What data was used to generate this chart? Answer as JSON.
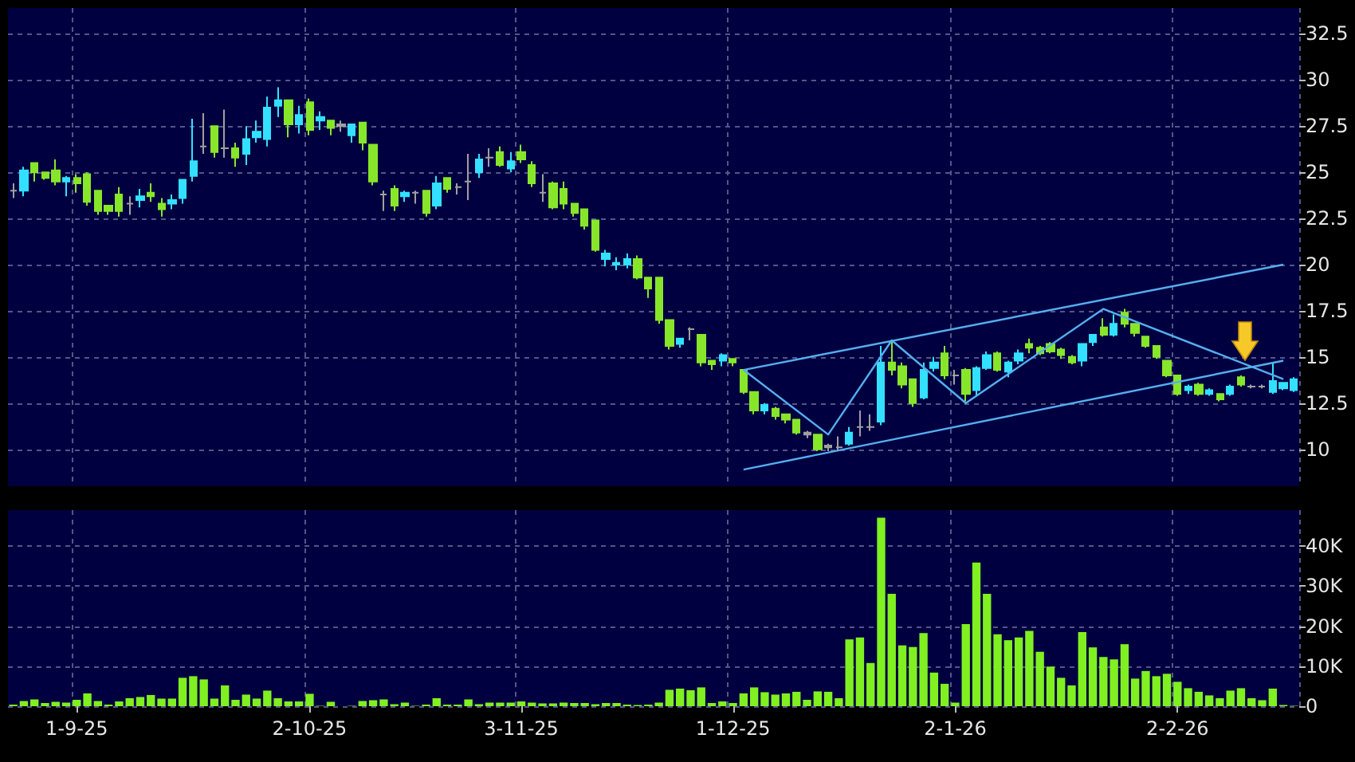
{
  "chart_data": [
    {
      "type": "candlestick",
      "categories": [
        null,
        null,
        null,
        null,
        null,
        null,
        null,
        null,
        null,
        null,
        null,
        null,
        null,
        null,
        null,
        null,
        null,
        null,
        null,
        null,
        null,
        null,
        null,
        null,
        null,
        null,
        null,
        null,
        null,
        null,
        null,
        null,
        null,
        null,
        null,
        null,
        null,
        null,
        null,
        null,
        null,
        null,
        null,
        null,
        null,
        null,
        null,
        null,
        null,
        null,
        null,
        null,
        null,
        null,
        null,
        null,
        null,
        null,
        null,
        null,
        null,
        null,
        null,
        null,
        null,
        null,
        null,
        null,
        null,
        null,
        null,
        null,
        null,
        null,
        null,
        null,
        null,
        null,
        null,
        null,
        null,
        null,
        null,
        null,
        null,
        null,
        null,
        null,
        null,
        null,
        null,
        null,
        null,
        null,
        null,
        null,
        null,
        null,
        null,
        null,
        null,
        null,
        null,
        null,
        null,
        null,
        null,
        null,
        null,
        null,
        null,
        null,
        null,
        null,
        null,
        null,
        null,
        null,
        null,
        null,
        null,
        null
      ],
      "ylim": [
        8,
        33.9
      ],
      "yticks": [
        10,
        12.5,
        15,
        17.5,
        20,
        22.5,
        25,
        27.5,
        30,
        32.5
      ],
      "grid": true,
      "tick_labels": "y",
      "marker": "none",
      "series": [
        {
          "type": "candlestick",
          "ohlc": [
            [
              24.0,
              24.4,
              23.6,
              24.0
            ],
            [
              24.0,
              25.3,
              23.7,
              25.1
            ],
            [
              25.5,
              25.5,
              24.5,
              25.0
            ],
            [
              25.0,
              25.0,
              24.6,
              24.7
            ],
            [
              25.1,
              25.7,
              24.3,
              24.5
            ],
            [
              24.5,
              24.8,
              23.7,
              24.7
            ],
            [
              24.7,
              24.9,
              23.9,
              24.4
            ],
            [
              24.9,
              25.0,
              23.2,
              23.4
            ],
            [
              24.0,
              24.0,
              22.7,
              22.9
            ],
            [
              23.2,
              23.2,
              22.7,
              22.9
            ],
            [
              23.8,
              24.2,
              22.6,
              22.9
            ],
            [
              23.3,
              23.7,
              22.7,
              23.3
            ],
            [
              23.5,
              24.1,
              23.1,
              23.7
            ],
            [
              23.9,
              24.4,
              23.4,
              23.7
            ],
            [
              23.3,
              23.6,
              22.6,
              23.0
            ],
            [
              23.3,
              23.8,
              23.0,
              23.5
            ],
            [
              23.6,
              24.6,
              23.3,
              24.6
            ],
            [
              24.8,
              27.9,
              24.5,
              25.6
            ],
            [
              26.4,
              28.2,
              26.0,
              26.4
            ],
            [
              27.5,
              27.5,
              25.8,
              26.1
            ],
            [
              26.3,
              28.4,
              25.8,
              26.3
            ],
            [
              26.3,
              26.6,
              25.3,
              25.8
            ],
            [
              26.0,
              27.5,
              25.4,
              26.8
            ],
            [
              26.9,
              27.8,
              26.6,
              27.2
            ],
            [
              26.8,
              29.1,
              26.4,
              28.5
            ],
            [
              28.6,
              29.6,
              28.0,
              28.9
            ],
            [
              28.9,
              28.9,
              26.9,
              27.6
            ],
            [
              27.6,
              28.6,
              27.1,
              28.1
            ],
            [
              28.8,
              29.0,
              27.0,
              27.3
            ],
            [
              27.8,
              28.3,
              27.3,
              28.0
            ],
            [
              27.8,
              27.8,
              27.0,
              27.4
            ],
            [
              27.5,
              27.8,
              27.2,
              27.6
            ],
            [
              27.0,
              27.6,
              26.6,
              27.6
            ],
            [
              27.7,
              27.7,
              26.2,
              26.6
            ],
            [
              26.5,
              26.5,
              24.3,
              24.5
            ],
            [
              23.8,
              24.0,
              22.9,
              23.8
            ],
            [
              24.1,
              24.3,
              22.9,
              23.2
            ],
            [
              23.7,
              24.0,
              23.4,
              23.9
            ],
            [
              23.9,
              24.0,
              23.3,
              23.9
            ],
            [
              24.0,
              24.0,
              22.6,
              22.8
            ],
            [
              23.2,
              24.8,
              23.0,
              24.4
            ],
            [
              24.7,
              24.7,
              23.9,
              24.1
            ],
            [
              24.2,
              24.4,
              23.8,
              24.2
            ],
            [
              24.5,
              26.0,
              23.5,
              24.5
            ],
            [
              25.0,
              26.0,
              24.7,
              25.7
            ],
            [
              25.8,
              26.3,
              25.3,
              25.8
            ],
            [
              26.1,
              26.4,
              25.3,
              25.4
            ],
            [
              25.2,
              26.1,
              25.0,
              25.6
            ],
            [
              26.1,
              26.5,
              25.5,
              25.7
            ],
            [
              25.4,
              25.6,
              24.2,
              24.4
            ],
            [
              23.9,
              24.9,
              23.4,
              23.9
            ],
            [
              24.4,
              24.5,
              23.0,
              23.1
            ],
            [
              24.1,
              24.5,
              23.0,
              23.3
            ],
            [
              23.3,
              23.3,
              22.6,
              22.8
            ],
            [
              23.0,
              23.0,
              21.9,
              22.1
            ],
            [
              22.4,
              22.4,
              20.7,
              20.8
            ],
            [
              20.3,
              20.8,
              19.9,
              20.6
            ],
            [
              20.0,
              20.4,
              19.7,
              20.1
            ],
            [
              20.0,
              20.6,
              19.8,
              20.3
            ],
            [
              20.3,
              20.5,
              19.2,
              19.3
            ],
            [
              19.3,
              19.3,
              18.2,
              18.7
            ],
            [
              19.3,
              19.3,
              16.8,
              17.0
            ],
            [
              17.0,
              17.0,
              15.4,
              15.6
            ],
            [
              15.7,
              16.0,
              15.5,
              16.0
            ],
            [
              16.5,
              16.6,
              15.9,
              16.5
            ],
            [
              16.2,
              16.2,
              14.5,
              14.7
            ],
            [
              14.8,
              14.8,
              14.3,
              14.6
            ],
            [
              14.8,
              15.2,
              14.5,
              15.1
            ],
            [
              14.9,
              14.9,
              14.5,
              14.7
            ],
            [
              14.3,
              14.3,
              13.0,
              13.1
            ],
            [
              13.1,
              13.1,
              11.9,
              12.1
            ],
            [
              12.1,
              12.5,
              11.9,
              12.4
            ],
            [
              12.2,
              12.3,
              11.6,
              11.8
            ],
            [
              11.9,
              11.9,
              11.4,
              11.6
            ],
            [
              11.6,
              11.6,
              10.8,
              10.9
            ],
            [
              10.8,
              11.0,
              10.6,
              10.9
            ],
            [
              10.8,
              10.8,
              9.9,
              10.0
            ],
            [
              10.1,
              10.3,
              9.9,
              10.2
            ],
            [
              10.1,
              10.7,
              9.9,
              10.1
            ],
            [
              10.3,
              11.2,
              10.2,
              10.9
            ],
            [
              11.2,
              12.1,
              10.7,
              11.2
            ],
            [
              11.2,
              11.9,
              11.0,
              11.2
            ],
            [
              11.5,
              15.6,
              11.3,
              14.7
            ],
            [
              14.7,
              15.9,
              14.0,
              14.3
            ],
            [
              14.5,
              14.7,
              13.3,
              13.5
            ],
            [
              13.8,
              13.8,
              12.3,
              12.5
            ],
            [
              12.8,
              14.7,
              12.7,
              14.3
            ],
            [
              14.4,
              15.0,
              14.2,
              14.7
            ],
            [
              15.2,
              15.6,
              13.8,
              14.0
            ],
            [
              14.0,
              14.3,
              13.5,
              14.0
            ],
            [
              14.3,
              14.4,
              12.6,
              13.0
            ],
            [
              13.2,
              14.5,
              12.9,
              14.4
            ],
            [
              14.4,
              15.3,
              14.3,
              15.1
            ],
            [
              15.2,
              15.3,
              14.2,
              14.3
            ],
            [
              14.2,
              14.8,
              13.9,
              14.7
            ],
            [
              14.8,
              15.4,
              14.6,
              15.2
            ],
            [
              15.7,
              16.0,
              15.2,
              15.5
            ],
            [
              15.5,
              15.6,
              15.1,
              15.2
            ],
            [
              15.7,
              15.8,
              15.2,
              15.3
            ],
            [
              15.4,
              15.5,
              14.9,
              15.1
            ],
            [
              15.0,
              15.1,
              14.6,
              14.7
            ],
            [
              14.8,
              15.7,
              14.5,
              15.7
            ],
            [
              15.8,
              16.2,
              15.6,
              16.2
            ],
            [
              16.6,
              17.1,
              16.1,
              16.2
            ],
            [
              16.2,
              17.3,
              16.1,
              16.8
            ],
            [
              17.4,
              17.6,
              16.6,
              16.8
            ],
            [
              16.8,
              16.8,
              16.1,
              16.3
            ],
            [
              16.1,
              16.1,
              15.5,
              15.6
            ],
            [
              15.6,
              15.6,
              14.9,
              15.0
            ],
            [
              14.8,
              14.8,
              13.9,
              14.0
            ],
            [
              14.0,
              14.0,
              12.9,
              13.0
            ],
            [
              13.2,
              13.5,
              13.0,
              13.4
            ],
            [
              13.5,
              13.6,
              12.9,
              13.0
            ],
            [
              13.0,
              13.3,
              12.9,
              13.2
            ],
            [
              13.0,
              13.0,
              12.6,
              12.7
            ],
            [
              13.0,
              13.5,
              12.9,
              13.4
            ],
            [
              13.9,
              14.0,
              13.4,
              13.5
            ],
            [
              13.4,
              13.5,
              13.3,
              13.4
            ],
            [
              13.4,
              13.5,
              13.3,
              13.4
            ],
            [
              13.1,
              14.7,
              13.0,
              13.7
            ],
            [
              13.3,
              13.6,
              13.2,
              13.6
            ],
            [
              13.2,
              13.9,
              13.1,
              13.8
            ]
          ],
          "colors": [
            "#a0a0a0",
            "#33e0ff",
            "#88e62a",
            "#88e62a",
            "#88e62a",
            "#33e0ff",
            "#88e62a",
            "#88e62a",
            "#88e62a",
            "#88e62a",
            "#88e62a",
            "#a0a0a0",
            "#33e0ff",
            "#88e62a",
            "#88e62a",
            "#33e0ff",
            "#33e0ff",
            "#33e0ff",
            "#a0a0a0",
            "#88e62a",
            "#a0a0a0",
            "#88e62a",
            "#33e0ff",
            "#33e0ff",
            "#33e0ff",
            "#33e0ff",
            "#88e62a",
            "#33e0ff",
            "#88e62a",
            "#33e0ff",
            "#88e62a",
            "#a0a0a0",
            "#33e0ff",
            "#88e62a",
            "#88e62a",
            "#a0a0a0",
            "#88e62a",
            "#33e0ff",
            "#a0a0a0",
            "#88e62a",
            "#33e0ff",
            "#88e62a",
            "#a0a0a0",
            "#a0a0a0",
            "#33e0ff",
            "#a0a0a0",
            "#88e62a",
            "#33e0ff",
            "#88e62a",
            "#88e62a",
            "#a0a0a0",
            "#88e62a",
            "#88e62a",
            "#88e62a",
            "#88e62a",
            "#88e62a",
            "#33e0ff",
            "#33e0ff",
            "#33e0ff",
            "#88e62a",
            "#88e62a",
            "#88e62a",
            "#88e62a",
            "#33e0ff",
            "#a0a0a0",
            "#88e62a",
            "#88e62a",
            "#33e0ff",
            "#88e62a",
            "#88e62a",
            "#88e62a",
            "#33e0ff",
            "#88e62a",
            "#88e62a",
            "#88e62a",
            "#a0a0a0",
            "#88e62a",
            "#a0a0a0",
            "#a0a0a0",
            "#33e0ff",
            "#a0a0a0",
            "#a0a0a0",
            "#33e0ff",
            "#88e62a",
            "#88e62a",
            "#88e62a",
            "#33e0ff",
            "#33e0ff",
            "#88e62a",
            "#a0a0a0",
            "#88e62a",
            "#33e0ff",
            "#33e0ff",
            "#88e62a",
            "#33e0ff",
            "#33e0ff",
            "#88e62a",
            "#88e62a",
            "#88e62a",
            "#88e62a",
            "#88e62a",
            "#33e0ff",
            "#33e0ff",
            "#88e62a",
            "#33e0ff",
            "#88e62a",
            "#88e62a",
            "#88e62a",
            "#88e62a",
            "#88e62a",
            "#88e62a",
            "#33e0ff",
            "#88e62a",
            "#33e0ff",
            "#88e62a",
            "#33e0ff",
            "#88e62a",
            "#a0a0a0",
            "#a0a0a0",
            "#33e0ff",
            "#33e0ff",
            "#33e0ff"
          ]
        },
        {
          "type": "line",
          "color": "#55aef0",
          "values": [
            null,
            null,
            null,
            null,
            null,
            null,
            null,
            null,
            null,
            null,
            null,
            null,
            null,
            null,
            null,
            null,
            null,
            null,
            null,
            null,
            null,
            null,
            null,
            null,
            null,
            null,
            null,
            null,
            null,
            null,
            null,
            null,
            null,
            null,
            null,
            null,
            null,
            null,
            null,
            null,
            null,
            null,
            null,
            null,
            null,
            null,
            null,
            null,
            null,
            null,
            null,
            null,
            null,
            null,
            null,
            null,
            null,
            null,
            null,
            null,
            null,
            null,
            null,
            null,
            null,
            null,
            null,
            null,
            null,
            14.3,
            null,
            null,
            null,
            null,
            null,
            null,
            null,
            null,
            null,
            null,
            null,
            null,
            null,
            null,
            null,
            null,
            null,
            null,
            null,
            null,
            null,
            null,
            null,
            null,
            null,
            null,
            null,
            null,
            null,
            null,
            null,
            null,
            null,
            null,
            null,
            null,
            null,
            null,
            null,
            null,
            null,
            null,
            null,
            null,
            null,
            null,
            null,
            null,
            null,
            null,
            20.0,
            null
          ]
        },
        {
          "type": "line",
          "color": "#55aef0",
          "values": [
            null,
            null,
            null,
            null,
            null,
            null,
            null,
            null,
            null,
            null,
            null,
            null,
            null,
            null,
            null,
            null,
            null,
            null,
            null,
            null,
            null,
            null,
            null,
            null,
            null,
            null,
            null,
            null,
            null,
            null,
            null,
            null,
            null,
            null,
            null,
            null,
            null,
            null,
            null,
            null,
            null,
            null,
            null,
            null,
            null,
            null,
            null,
            null,
            null,
            null,
            null,
            null,
            null,
            null,
            null,
            null,
            null,
            null,
            null,
            null,
            null,
            null,
            null,
            null,
            null,
            null,
            null,
            null,
            null,
            14.3,
            null,
            null,
            null,
            null,
            null,
            null,
            null,
            10.8,
            null,
            null,
            null,
            null,
            null,
            15.9,
            null,
            null,
            null,
            null,
            null,
            null,
            12.5,
            null,
            null,
            null,
            null,
            null,
            null,
            null,
            null,
            null,
            null,
            null,
            null,
            17.6,
            null,
            null,
            null,
            null,
            null,
            null,
            null,
            null,
            null,
            null,
            null,
            null,
            null,
            null,
            null,
            null,
            13.8,
            null
          ]
        },
        {
          "type": "line",
          "color": "#55aef0",
          "values": [
            null,
            null,
            null,
            null,
            null,
            null,
            null,
            null,
            null,
            null,
            null,
            null,
            null,
            null,
            null,
            null,
            null,
            null,
            null,
            null,
            null,
            null,
            null,
            null,
            null,
            null,
            null,
            null,
            null,
            null,
            null,
            null,
            null,
            null,
            null,
            null,
            null,
            null,
            null,
            null,
            null,
            null,
            null,
            null,
            null,
            null,
            null,
            null,
            null,
            null,
            null,
            null,
            null,
            null,
            null,
            null,
            null,
            null,
            null,
            null,
            null,
            null,
            null,
            null,
            null,
            null,
            null,
            null,
            null,
            8.9,
            null,
            null,
            null,
            null,
            null,
            null,
            null,
            null,
            null,
            null,
            null,
            null,
            null,
            null,
            null,
            null,
            null,
            null,
            null,
            null,
            null,
            null,
            null,
            null,
            null,
            null,
            null,
            null,
            null,
            null,
            null,
            null,
            null,
            null,
            null,
            null,
            null,
            null,
            null,
            null,
            null,
            null,
            null,
            null,
            null,
            null,
            null,
            null,
            null,
            null,
            14.8,
            null
          ]
        }
      ]
    },
    {
      "type": "bar",
      "categories": [
        null,
        null,
        null,
        null,
        null,
        null,
        "1-9-25",
        null,
        null,
        null,
        null,
        null,
        null,
        null,
        null,
        null,
        null,
        null,
        null,
        null,
        null,
        null,
        null,
        null,
        null,
        null,
        null,
        null,
        "2-10-25",
        null,
        null,
        null,
        null,
        null,
        null,
        null,
        null,
        null,
        null,
        null,
        null,
        null,
        null,
        null,
        null,
        null,
        null,
        null,
        "3-11-25",
        null,
        null,
        null,
        null,
        null,
        null,
        null,
        null,
        null,
        null,
        null,
        null,
        null,
        null,
        null,
        null,
        null,
        null,
        null,
        "1-12-25",
        null,
        null,
        null,
        null,
        null,
        null,
        null,
        null,
        null,
        null,
        null,
        null,
        null,
        null,
        null,
        null,
        null,
        null,
        null,
        null,
        "2-1-26",
        null,
        null,
        null,
        null,
        null,
        null,
        null,
        null,
        null,
        null,
        null,
        null,
        null,
        null,
        null,
        null,
        null,
        null,
        null,
        null,
        "2-2-26",
        null,
        null,
        null,
        null,
        null,
        null,
        null,
        null,
        null,
        null,
        null
      ],
      "ylim": [
        0,
        49000
      ],
      "yticks": [
        {
          "value": 0,
          "label": "0"
        },
        {
          "value": 10000,
          "label": "10K"
        },
        {
          "value": 20000,
          "label": "20K"
        },
        {
          "value": 30000,
          "label": "30K"
        },
        {
          "value": 40000,
          "label": "40K"
        }
      ],
      "grid": true,
      "color": "#80f020",
      "values": [
        400,
        1300,
        1700,
        800,
        1100,
        900,
        1600,
        3200,
        1300,
        400,
        1200,
        2000,
        2300,
        2800,
        1900,
        1900,
        7100,
        7500,
        6700,
        1900,
        5200,
        1600,
        2900,
        1900,
        3900,
        2000,
        1200,
        1200,
        3100,
        100,
        1100,
        0,
        100,
        1300,
        1500,
        1700,
        500,
        900,
        100,
        400,
        2000,
        400,
        400,
        1700,
        500,
        900,
        900,
        900,
        1200,
        900,
        700,
        700,
        900,
        800,
        800,
        500,
        800,
        800,
        400,
        300,
        400,
        900,
        4100,
        4400,
        4000,
        4700,
        800,
        1200,
        800,
        3200,
        4700,
        3500,
        2900,
        3200,
        3600,
        1600,
        3700,
        3600,
        2000,
        16700,
        17200,
        10800,
        47100,
        28100,
        15200,
        14800,
        18300,
        8400,
        5600,
        900,
        20500,
        35900,
        28100,
        18000,
        16500,
        17200,
        18800,
        13600,
        9900,
        7100,
        5200,
        18500,
        14700,
        12300,
        11700,
        15500,
        6900,
        8800,
        7500,
        8100,
        6100,
        4500,
        3600,
        2700,
        2000,
        3900,
        4500,
        2000,
        1500,
        4400,
        300,
        100
      ]
    }
  ]
}
